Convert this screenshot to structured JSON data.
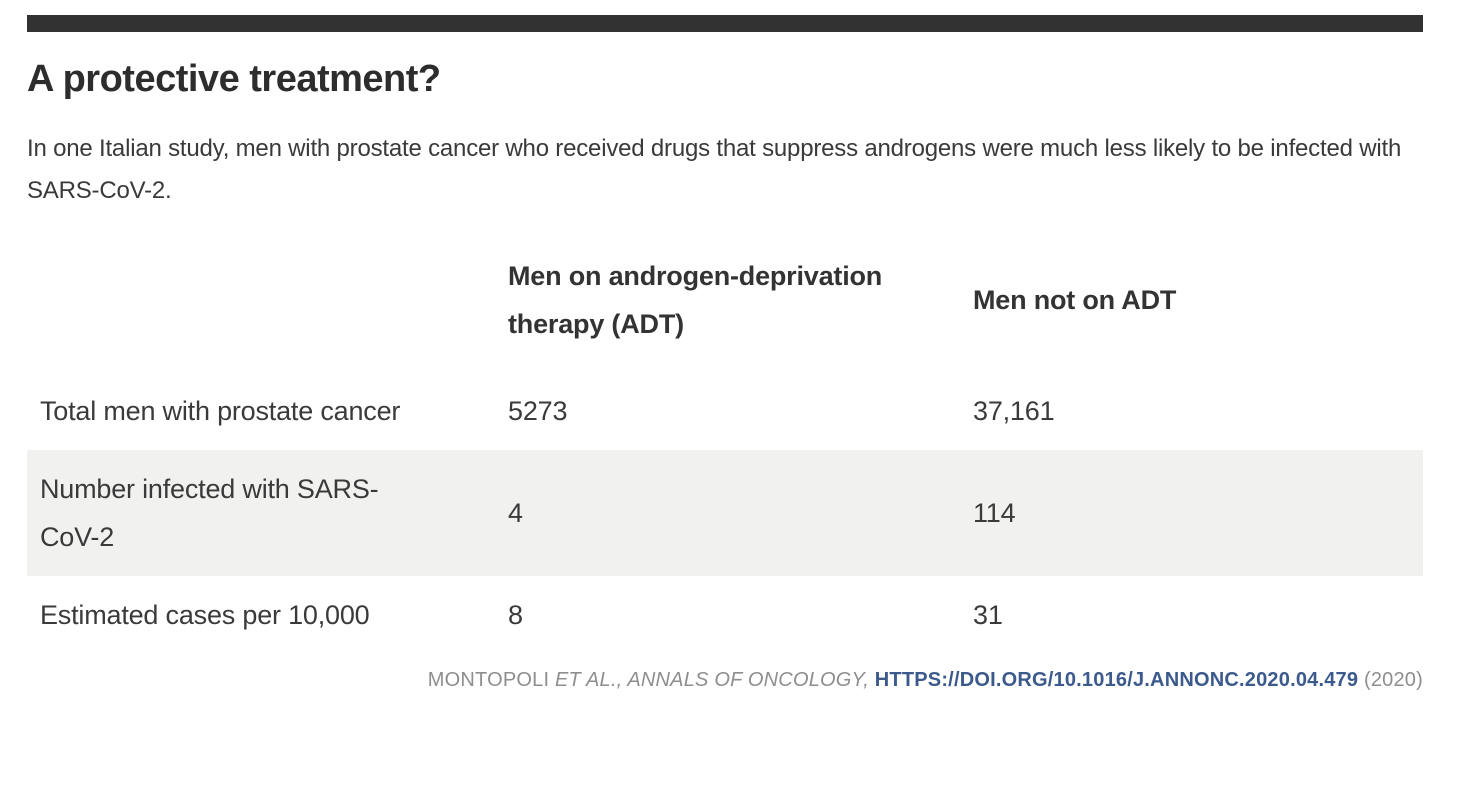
{
  "page": {
    "title": "A protective treatment?",
    "intro": "In one Italian study, men with prostate cancer who received drugs that suppress androgens were much less likely to be infected with SARS-CoV-2.",
    "colors": {
      "accent_bar": "#323232",
      "shaded_row": "#f1f1f0",
      "link": "#3c5a8b",
      "body_text": "#3a3a3a",
      "muted_text": "#8e8e8e"
    }
  },
  "chart_data": {
    "type": "table",
    "title": "A protective treatment?",
    "subtitle": "In one Italian study, men with prostate cancer who received drugs that suppress androgens were much less likely to be infected with SARS-CoV-2.",
    "columns": [
      "",
      "Men on androgen-deprivation therapy (ADT)",
      "Men not on ADT"
    ],
    "rows": [
      {
        "label": "Total men with prostate cancer",
        "values": [
          "5273",
          "37,161"
        ]
      },
      {
        "label": "Number infected with SARS-CoV-2",
        "values": [
          "4",
          "114"
        ]
      },
      {
        "label": "Estimated cases per 10,000",
        "values": [
          "8",
          "31"
        ]
      }
    ],
    "layout_hints": {
      "shaded_row_index": 1,
      "grid": "off",
      "header_style": "bold"
    }
  },
  "credit": {
    "authors": "MONTOPOLI ",
    "italic_part": "ET AL., ANNALS OF ONCOLOGY, ",
    "link": "HTTPS://DOI.ORG/10.1016/J.ANNONC.2020.04.479",
    "year": " (2020)"
  }
}
